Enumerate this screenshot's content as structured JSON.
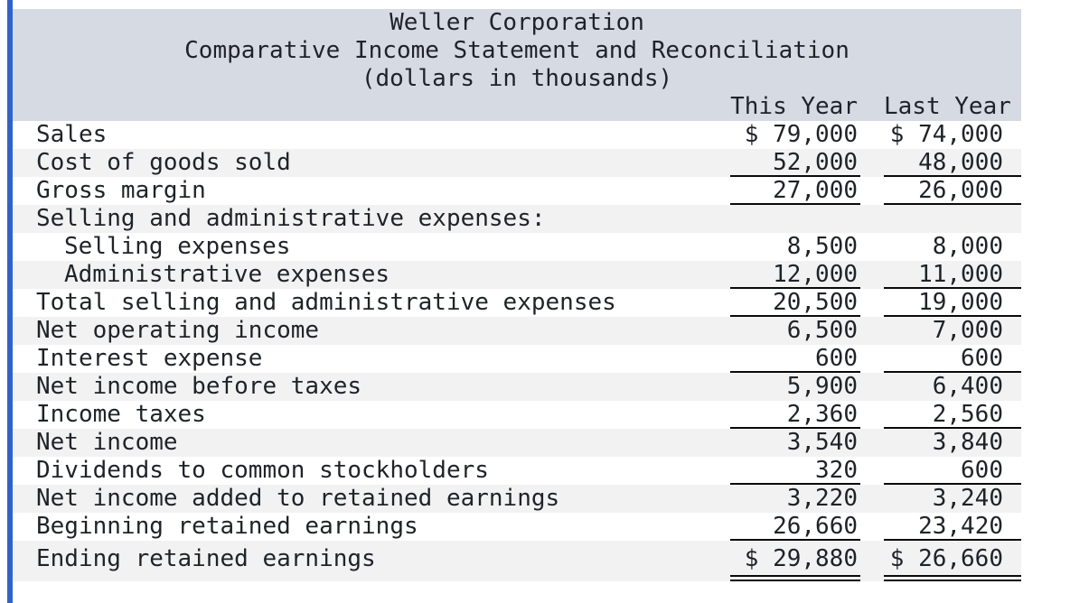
{
  "theme": {
    "accent_bar_color": "#2f63c8",
    "header_bg": "#d6dae3",
    "alt_row_bg": "#f2f2f3",
    "rule_color": "#0a0a0a",
    "text_color": "#1f2328"
  },
  "statement": {
    "title_lines": [
      "Weller Corporation",
      "Comparative Income Statement and Reconciliation",
      "(dollars in thousands)"
    ],
    "columns": [
      "This Year",
      "Last Year"
    ],
    "rows": [
      {
        "label": "Sales",
        "this_year": "$ 79,000",
        "last_year": "$ 74,000",
        "indent": 0,
        "shaded": false,
        "underline": "none"
      },
      {
        "label": "Cost of goods sold",
        "this_year": "52,000",
        "last_year": "48,000",
        "indent": 0,
        "shaded": true,
        "underline": "single"
      },
      {
        "label": "Gross margin",
        "this_year": "27,000",
        "last_year": "26,000",
        "indent": 0,
        "shaded": false,
        "underline": "single"
      },
      {
        "label": "Selling and administrative expenses:",
        "this_year": "",
        "last_year": "",
        "indent": 0,
        "shaded": true,
        "underline": "none"
      },
      {
        "label": "Selling expenses",
        "this_year": "8,500",
        "last_year": "8,000",
        "indent": 1,
        "shaded": false,
        "underline": "none"
      },
      {
        "label": "Administrative expenses",
        "this_year": "12,000",
        "last_year": "11,000",
        "indent": 1,
        "shaded": true,
        "underline": "single"
      },
      {
        "label": "Total selling and administrative expenses",
        "this_year": "20,500",
        "last_year": "19,000",
        "indent": 0,
        "shaded": false,
        "underline": "single"
      },
      {
        "label": "Net operating income",
        "this_year": "6,500",
        "last_year": "7,000",
        "indent": 0,
        "shaded": true,
        "underline": "none"
      },
      {
        "label": "Interest expense",
        "this_year": "600",
        "last_year": "600",
        "indent": 0,
        "shaded": false,
        "underline": "single"
      },
      {
        "label": "Net income before taxes",
        "this_year": "5,900",
        "last_year": "6,400",
        "indent": 0,
        "shaded": true,
        "underline": "none"
      },
      {
        "label": "Income taxes",
        "this_year": "2,360",
        "last_year": "2,560",
        "indent": 0,
        "shaded": false,
        "underline": "single"
      },
      {
        "label": "Net income",
        "this_year": "3,540",
        "last_year": "3,840",
        "indent": 0,
        "shaded": true,
        "underline": "none"
      },
      {
        "label": "Dividends to common stockholders",
        "this_year": "320",
        "last_year": "600",
        "indent": 0,
        "shaded": false,
        "underline": "single"
      },
      {
        "label": "Net income added to retained earnings",
        "this_year": "3,220",
        "last_year": "3,240",
        "indent": 0,
        "shaded": true,
        "underline": "none"
      },
      {
        "label": "Beginning retained earnings",
        "this_year": "26,660",
        "last_year": "23,420",
        "indent": 0,
        "shaded": false,
        "underline": "single"
      },
      {
        "label": "Ending retained earnings",
        "this_year": "$ 29,880",
        "last_year": "$ 26,660",
        "indent": 0,
        "shaded": true,
        "underline": "double",
        "tall": true
      }
    ]
  }
}
